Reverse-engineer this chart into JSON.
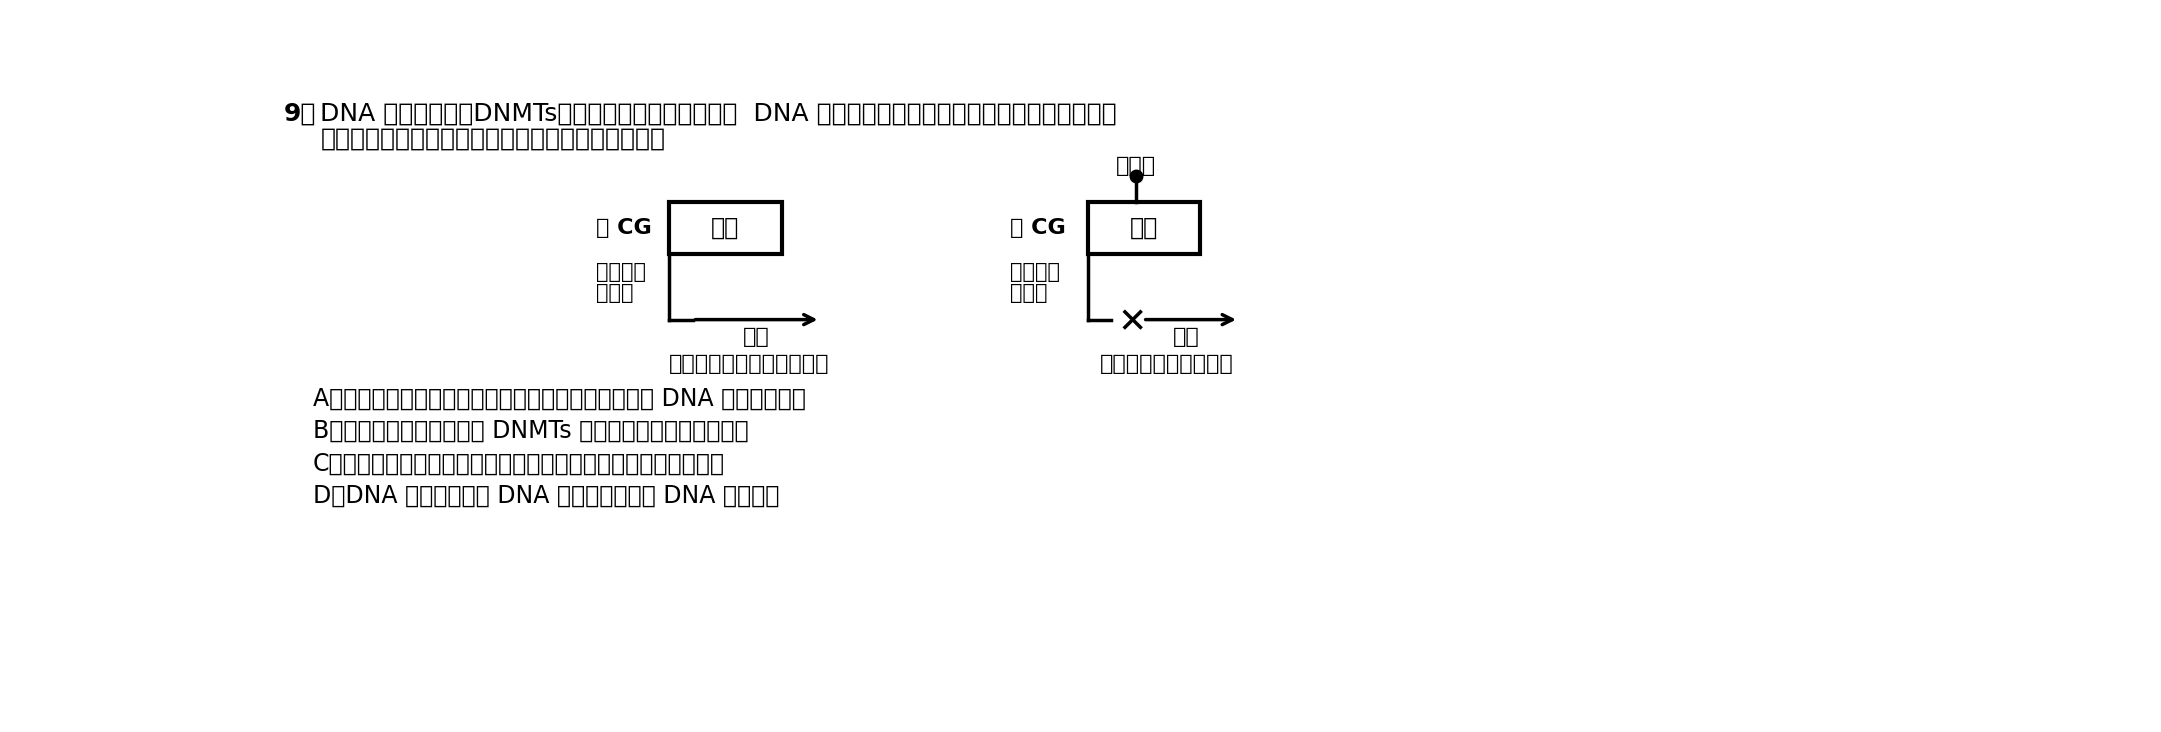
{
  "background_color": "#ffffff",
  "question_number": "9．",
  "question_text_line1": "DNA 甲基转移酶（DNMTs）能催化抑癌基因甲基化，  DNA 甲基化对基因表达的影响如图所示。研究表明",
  "question_text_line2": "萝卜硫素具有抗肿瘤的作用，以下有关叙述正确的是",
  "diagram_left_label_cg": "－ CG",
  "diagram_left_box_text": "基因",
  "diagram_left_control_text1": "基因表达",
  "diagram_left_control_text2": "调控区",
  "diagram_left_start_text": "开始",
  "diagram_right_label_cg": "－ CG",
  "diagram_right_box_text": "基因",
  "diagram_right_control_text1": "基因表达",
  "diagram_right_control_text2": "调控区",
  "diagram_right_end_text": "关闭",
  "diagram_methylation_label": "甲基化",
  "diagram_caption_left": "未被甲基化，基因表达开始",
  "diagram_caption_right": "甲基化，基因表达关闭",
  "option_A": "A．神经细胞已经高度分化，一般不再分裂，细胞中的 DNA 不存在甲基化",
  "option_B": "B．萝卜硫素可能通过抑制 DNMTs 的活性，抑制肿瘤细胞增殖",
  "option_C": "C．甲基化若发生在构成染色体的组蛋白上，则不会影响基因表达",
  "option_D": "D．DNA 甲基化会改变 DNA 的空间结构，使 DNA 无法复制",
  "fsize_q": 18,
  "fsize_d": 15,
  "fsize_o": 17,
  "fsize_cap": 15,
  "fig_w": 21.61,
  "fig_h": 7.32,
  "dpi": 100
}
